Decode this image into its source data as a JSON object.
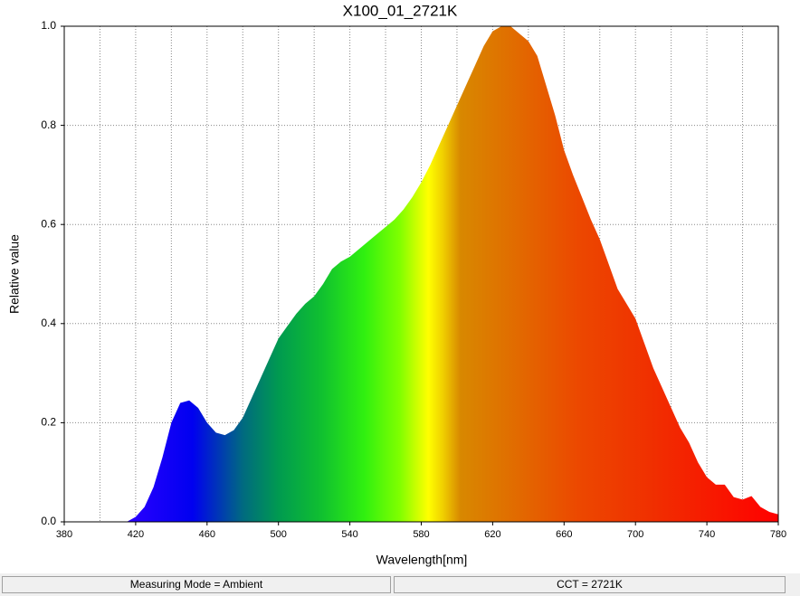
{
  "chart_data": {
    "type": "area",
    "title": "X100_01_2721K",
    "x_label": "Wavelength[nm]",
    "y_label": "Relative value",
    "x": [
      415,
      420,
      425,
      430,
      435,
      440,
      445,
      450,
      455,
      460,
      465,
      470,
      475,
      480,
      485,
      490,
      495,
      500,
      505,
      510,
      515,
      520,
      525,
      530,
      535,
      540,
      545,
      550,
      555,
      560,
      565,
      570,
      575,
      580,
      585,
      590,
      595,
      600,
      605,
      610,
      615,
      620,
      625,
      630,
      635,
      640,
      645,
      650,
      655,
      660,
      665,
      670,
      675,
      680,
      685,
      690,
      695,
      700,
      705,
      710,
      715,
      720,
      725,
      730,
      735,
      740,
      745,
      750,
      755,
      760,
      765,
      770,
      775,
      780
    ],
    "values": [
      0,
      0.01,
      0.03,
      0.07,
      0.13,
      0.2,
      0.24,
      0.245,
      0.23,
      0.2,
      0.18,
      0.175,
      0.185,
      0.21,
      0.25,
      0.29,
      0.33,
      0.37,
      0.395,
      0.42,
      0.44,
      0.455,
      0.48,
      0.51,
      0.525,
      0.535,
      0.55,
      0.565,
      0.58,
      0.595,
      0.61,
      0.63,
      0.655,
      0.685,
      0.72,
      0.76,
      0.8,
      0.84,
      0.88,
      0.92,
      0.96,
      0.99,
      1.0,
      1.0,
      0.985,
      0.97,
      0.94,
      0.88,
      0.82,
      0.75,
      0.7,
      0.655,
      0.61,
      0.57,
      0.52,
      0.47,
      0.44,
      0.41,
      0.36,
      0.31,
      0.27,
      0.23,
      0.19,
      0.16,
      0.12,
      0.09,
      0.075,
      0.075,
      0.05,
      0.045,
      0.052,
      0.03,
      0.02,
      0.015
    ],
    "xlim": [
      380,
      780
    ],
    "ylim": [
      0,
      1
    ],
    "xticks": [
      380,
      420,
      460,
      500,
      540,
      580,
      620,
      660,
      700,
      740,
      780
    ],
    "xminorticks": [
      400,
      440,
      480,
      520,
      560,
      600,
      640,
      680,
      720,
      760
    ],
    "yticks": [
      {
        "value": 0,
        "label": "0.0"
      },
      0.2,
      0.4,
      0.6,
      0.8,
      {
        "value": 1,
        "label": "1.0"
      }
    ],
    "grid": true
  },
  "status": {
    "left": "Measuring Mode = Ambient",
    "right": "CCT = 2721K"
  }
}
